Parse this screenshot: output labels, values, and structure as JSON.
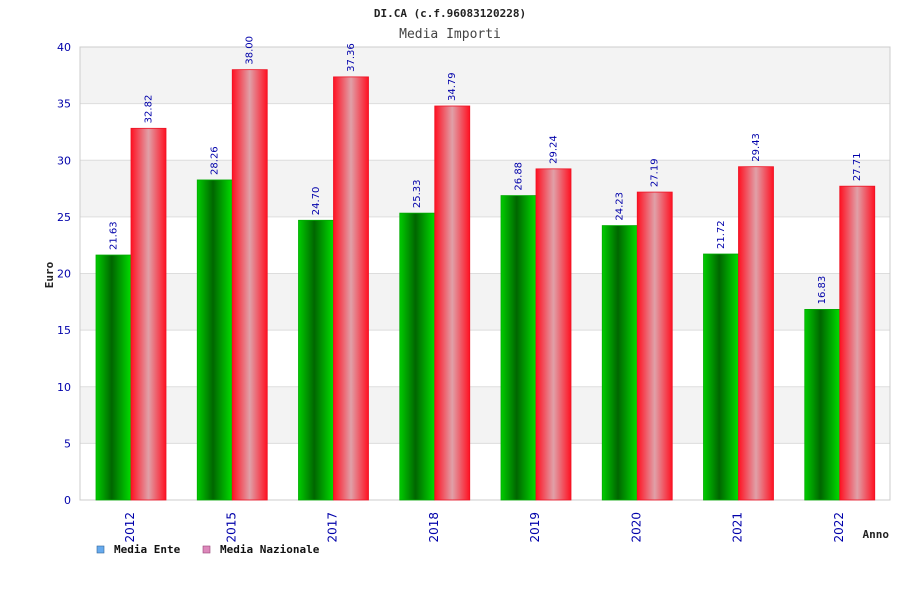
{
  "chart_data": {
    "type": "bar",
    "title": "DI.CA (c.f.96083120228)",
    "subtitle": "Media Importi",
    "xlabel": "Anno",
    "ylabel": "Euro",
    "ylim": [
      0,
      40
    ],
    "yticks": [
      0,
      5,
      10,
      15,
      20,
      25,
      30,
      35,
      40
    ],
    "categories": [
      "2012",
      "2015",
      "2017",
      "2018",
      "2019",
      "2020",
      "2021",
      "2022"
    ],
    "series": [
      {
        "name": "Media Ente",
        "values": [
          21.63,
          28.26,
          24.7,
          25.33,
          26.88,
          24.23,
          21.72,
          16.83
        ],
        "labels": [
          "21.63",
          "28.26",
          "24.70",
          "25.33",
          "26.88",
          "24.23",
          "21.72",
          "16.83"
        ],
        "color": "#00aa00",
        "legend_color": "#66aaee"
      },
      {
        "name": "Media Nazionale",
        "values": [
          32.82,
          38.0,
          37.36,
          34.79,
          29.24,
          27.19,
          29.43,
          27.71
        ],
        "labels": [
          "32.82",
          "38.00",
          "37.36",
          "34.79",
          "29.24",
          "27.19",
          "29.43",
          "27.71"
        ],
        "color": "#ee1122",
        "legend_color": "#dd88bb"
      }
    ],
    "grid": true,
    "legend_position": "bottom-left"
  }
}
